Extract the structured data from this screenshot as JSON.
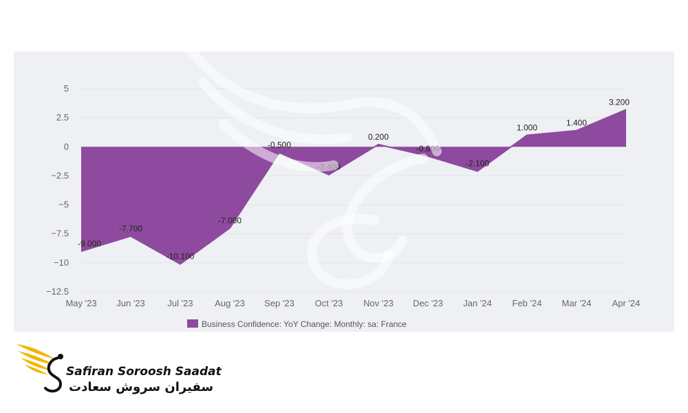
{
  "chart_data": {
    "type": "area",
    "title": "",
    "xlabel": "",
    "ylabel": "",
    "categories": [
      "May '23",
      "Jun '23",
      "Jul '23",
      "Aug '23",
      "Sep '23",
      "Oct '23",
      "Nov '23",
      "Dec '23",
      "Jan '24",
      "Feb '24",
      "Mar '24",
      "Apr '24"
    ],
    "series": [
      {
        "name": "Business Confidence: YoY Change: Monthly: sa: France",
        "values": [
          -9.0,
          -7.7,
          -10.1,
          -7.0,
          -0.5,
          -2.4,
          0.2,
          -0.8,
          -2.1,
          1.0,
          1.4,
          3.2
        ],
        "labels": [
          "-9.000",
          "-7.700",
          "-10.100",
          "-7.000",
          "-0.500",
          "-2.400",
          "0.200",
          "-0.800",
          "-2.100",
          "1.000",
          "1.400",
          "3.200"
        ],
        "color": "#8e4a9e"
      }
    ],
    "yticks": [
      5,
      2.5,
      0,
      -2.5,
      -5,
      -7.5,
      -10,
      -12.5
    ],
    "ytick_labels": [
      "5",
      "2.5",
      "0",
      "−2.5",
      "−5",
      "−7.5",
      "−10",
      "−12.5"
    ],
    "ylim": [
      -12.5,
      5
    ],
    "grid": true,
    "legend": "bottom-center"
  },
  "branding": {
    "name_en": "Safiran Soroosh Saadat",
    "name_fa": "سفیران سروش سعادت",
    "logo_icon": "winged-s-logo-icon",
    "colors": {
      "logo_gold": "#f2b705",
      "text": "#111111"
    }
  }
}
